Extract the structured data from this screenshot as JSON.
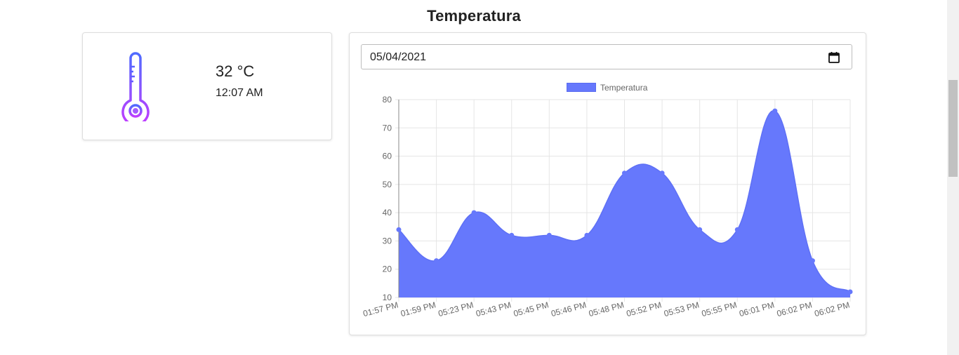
{
  "page": {
    "title": "Temperatura"
  },
  "current": {
    "temperature": "32 °C",
    "time": "12:07 AM",
    "icon": "thermometer-icon"
  },
  "date_picker": {
    "value": "05/04/2021",
    "icon": "calendar-icon"
  },
  "colors": {
    "series": "#6678fc",
    "icon_gradient_start": "#4f6bff",
    "icon_gradient_end": "#c23cff"
  },
  "chart_data": {
    "type": "area",
    "series": [
      {
        "name": "Temperatura",
        "values": [
          34,
          23,
          40,
          32,
          32,
          32,
          54,
          54,
          34,
          34,
          76,
          23,
          12
        ]
      }
    ],
    "categories": [
      "01:57 PM",
      "01:59 PM",
      "05:23 PM",
      "05:43 PM",
      "05:45 PM",
      "05:46 PM",
      "05:48 PM",
      "05:52 PM",
      "05:53 PM",
      "05:55 PM",
      "06:01 PM",
      "06:02 PM",
      "06:02 PM"
    ],
    "yticks": [
      10,
      20,
      30,
      40,
      50,
      60,
      70,
      80
    ],
    "ylim": [
      10,
      80
    ],
    "grid": true,
    "legend": "top-center"
  }
}
